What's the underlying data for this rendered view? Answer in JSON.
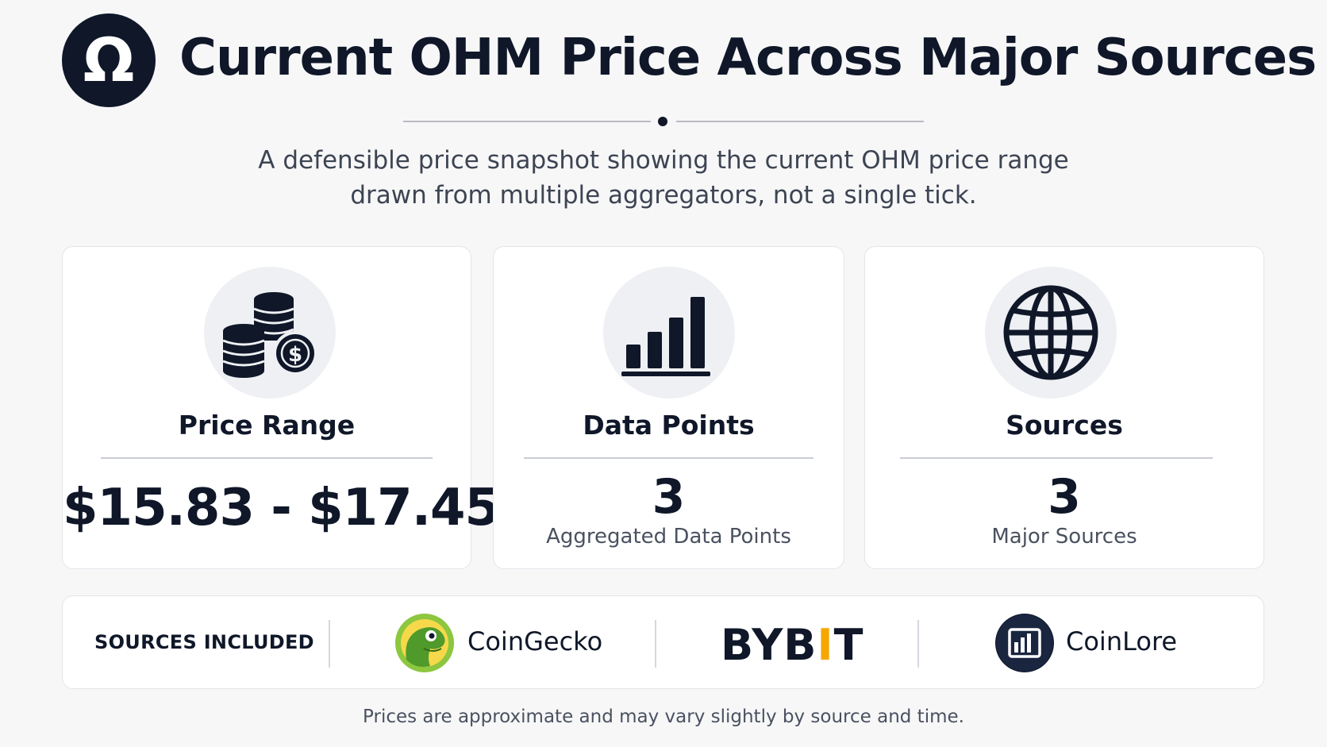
{
  "header": {
    "logo_glyph": "Ω",
    "title": "Current OHM Price Across Major Sources",
    "subtitle_line1": "A defensible price snapshot showing the current OHM price range",
    "subtitle_line2": "drawn from multiple aggregators, not a single tick."
  },
  "cards": [
    {
      "icon": "coins-dollar-icon",
      "label": "Price Range",
      "value": "$15.83 - $17.45"
    },
    {
      "icon": "bar-chart-icon",
      "label": "Data Points",
      "value": "3",
      "caption": "Aggregated Data Points"
    },
    {
      "icon": "globe-icon",
      "label": "Sources",
      "value": "3",
      "caption": "Major Sources"
    }
  ],
  "sources": {
    "heading": "SOURCES INCLUDED",
    "items": [
      {
        "name": "CoinGecko",
        "icon": "coingecko-logo-icon"
      },
      {
        "name_part1": "BYB",
        "name_part2": "I",
        "name_part3": "T",
        "icon": "bybit-logo"
      },
      {
        "name": "CoinLore",
        "icon": "coinlore-logo-icon"
      }
    ]
  },
  "footnote": "Prices are approximate and may vary slightly by source and time.",
  "colors": {
    "navy": "#0f1729",
    "bybit_accent": "#f7a600",
    "coingecko_green": "#8dc63f",
    "page_bg": "#f7f7f8"
  }
}
